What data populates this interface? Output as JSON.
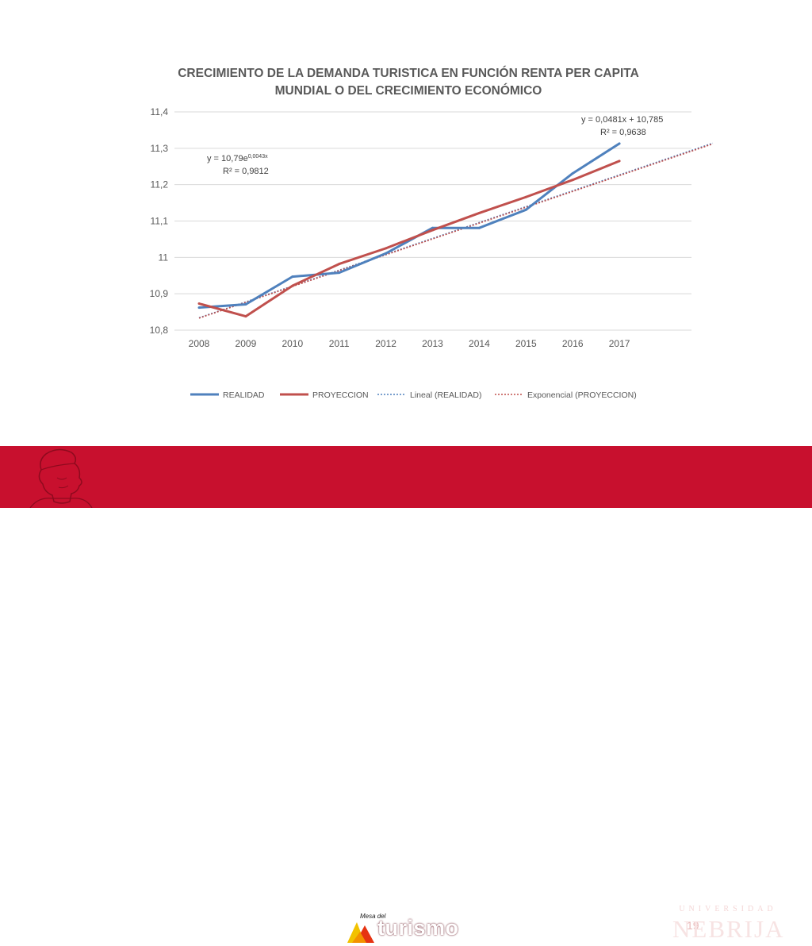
{
  "chart_data": {
    "type": "line",
    "title": "CRECIMIENTO DE LA DEMANDA TURISTICA EN FUNCIÓN RENTA PER CAPITA",
    "title_line2": "MUNDIAL O DEL CRECIMIENTO ECONÓMICO",
    "categories": [
      "2008",
      "2009",
      "2010",
      "2011",
      "2012",
      "2013",
      "2014",
      "2015",
      "2016",
      "2017"
    ],
    "ylim": [
      10.8,
      11.4
    ],
    "y_ticks": [
      "10,8",
      "10,9",
      "11",
      "11,1",
      "11,2",
      "11,3",
      "11,4"
    ],
    "grid": true,
    "legend_position": "bottom",
    "series": [
      {
        "name": "REALIDAD",
        "color": "#4f81bd",
        "style": "solid",
        "values": [
          10.862,
          10.871,
          10.947,
          10.958,
          11.011,
          11.081,
          11.081,
          11.131,
          11.231,
          11.313
        ]
      },
      {
        "name": "PROYECCION",
        "color": "#c0504d",
        "style": "solid",
        "values": [
          10.873,
          10.838,
          10.922,
          10.982,
          11.025,
          11.075,
          11.122,
          11.166,
          11.213,
          11.265
        ]
      },
      {
        "name": "Lineal (REALIDAD)",
        "color": "#4f81bd",
        "style": "dotted",
        "x_start": 0,
        "x_end": 11,
        "y_start": 10.834,
        "y_end": 11.314
      },
      {
        "name": "Exponencial (PROYECCION)",
        "color": "#c0504d",
        "style": "dotted",
        "x_start": 0,
        "x_end": 11,
        "y_start": 10.833,
        "y_end": 11.312
      }
    ],
    "annotations": {
      "exp_eq_base": "y = 10,79e",
      "exp_eq_exp": "0,0043x",
      "exp_r2": "R² = 0,9812",
      "lin_eq": "y = 0,0481x + 10,785",
      "lin_r2": "R² = 0,9638"
    }
  },
  "footer": {
    "page_number": "19",
    "mesa_small": "Mesa del",
    "mesa_big": "turismo",
    "university_top": "UNIVERSIDAD",
    "university_name": "NEBRIJA"
  },
  "colors": {
    "footer_red": "#c8102e",
    "grid": "#d9d9d9",
    "axis_text": "#595959"
  }
}
